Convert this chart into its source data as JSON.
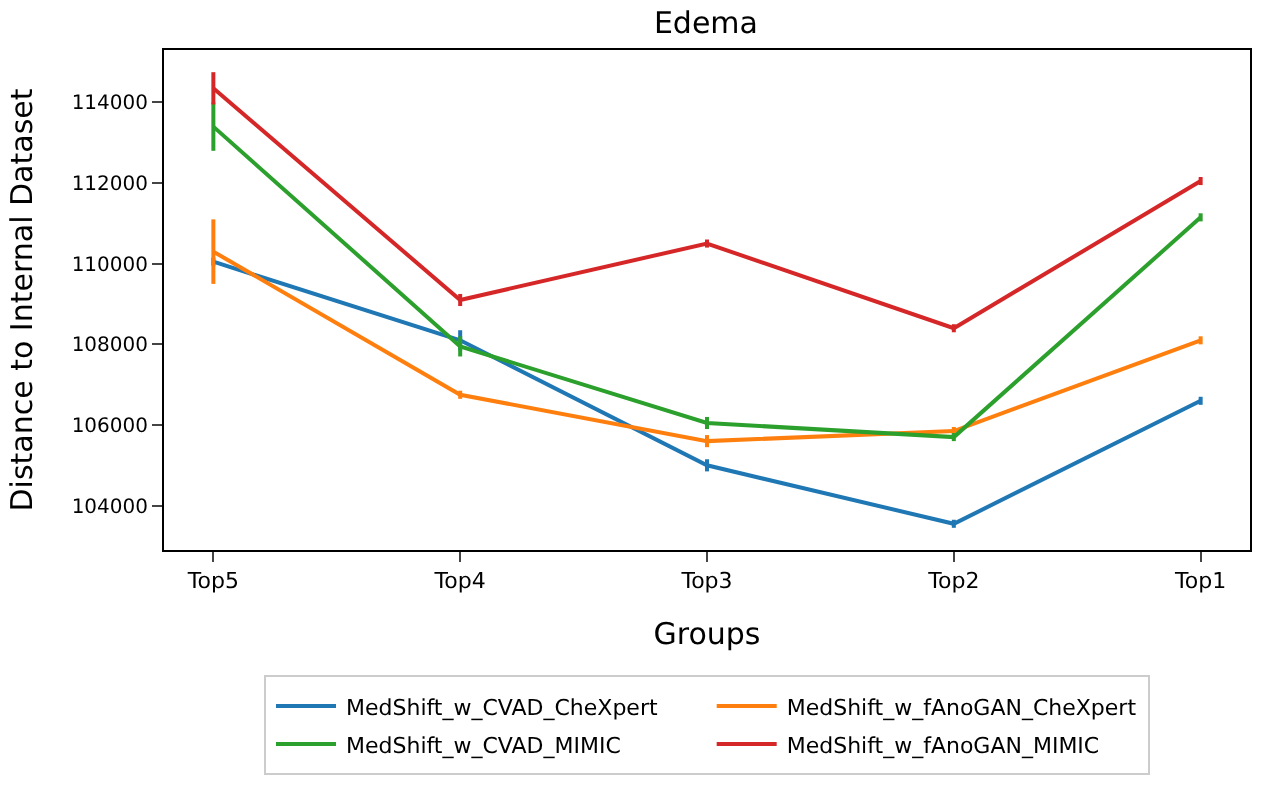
{
  "chart_data": {
    "type": "line",
    "title": "Edema",
    "xlabel": "Groups",
    "ylabel": "Distance to Internal Dataset",
    "categories": [
      "Top5",
      "Top4",
      "Top3",
      "Top2",
      "Top1"
    ],
    "series": [
      {
        "name": "MedShift_w_CVAD_CheXpert",
        "color": "#1f77b4",
        "values": [
          110050,
          108100,
          105000,
          103550,
          106600
        ],
        "errors": [
          100,
          250,
          150,
          100,
          100
        ]
      },
      {
        "name": "MedShift_w_fAnoGAN_CheXpert",
        "color": "#ff7f0e",
        "values": [
          110300,
          106750,
          105600,
          105850,
          108100
        ],
        "errors": [
          800,
          100,
          150,
          100,
          100
        ]
      },
      {
        "name": "MedShift_w_CVAD_MIMIC",
        "color": "#2ca02c",
        "values": [
          113400,
          107950,
          106050,
          105700,
          111150
        ],
        "errors": [
          600,
          250,
          150,
          100,
          100
        ]
      },
      {
        "name": "MedShift_w_fAnoGAN_MIMIC",
        "color": "#d62728",
        "values": [
          114350,
          109100,
          110500,
          108400,
          112050
        ],
        "errors": [
          400,
          150,
          100,
          100,
          100
        ]
      }
    ],
    "ylim": [
      102900,
      115300
    ],
    "yticks": [
      104000,
      106000,
      108000,
      110000,
      112000,
      114000
    ],
    "legend": "bottom",
    "line_style": "solid"
  }
}
